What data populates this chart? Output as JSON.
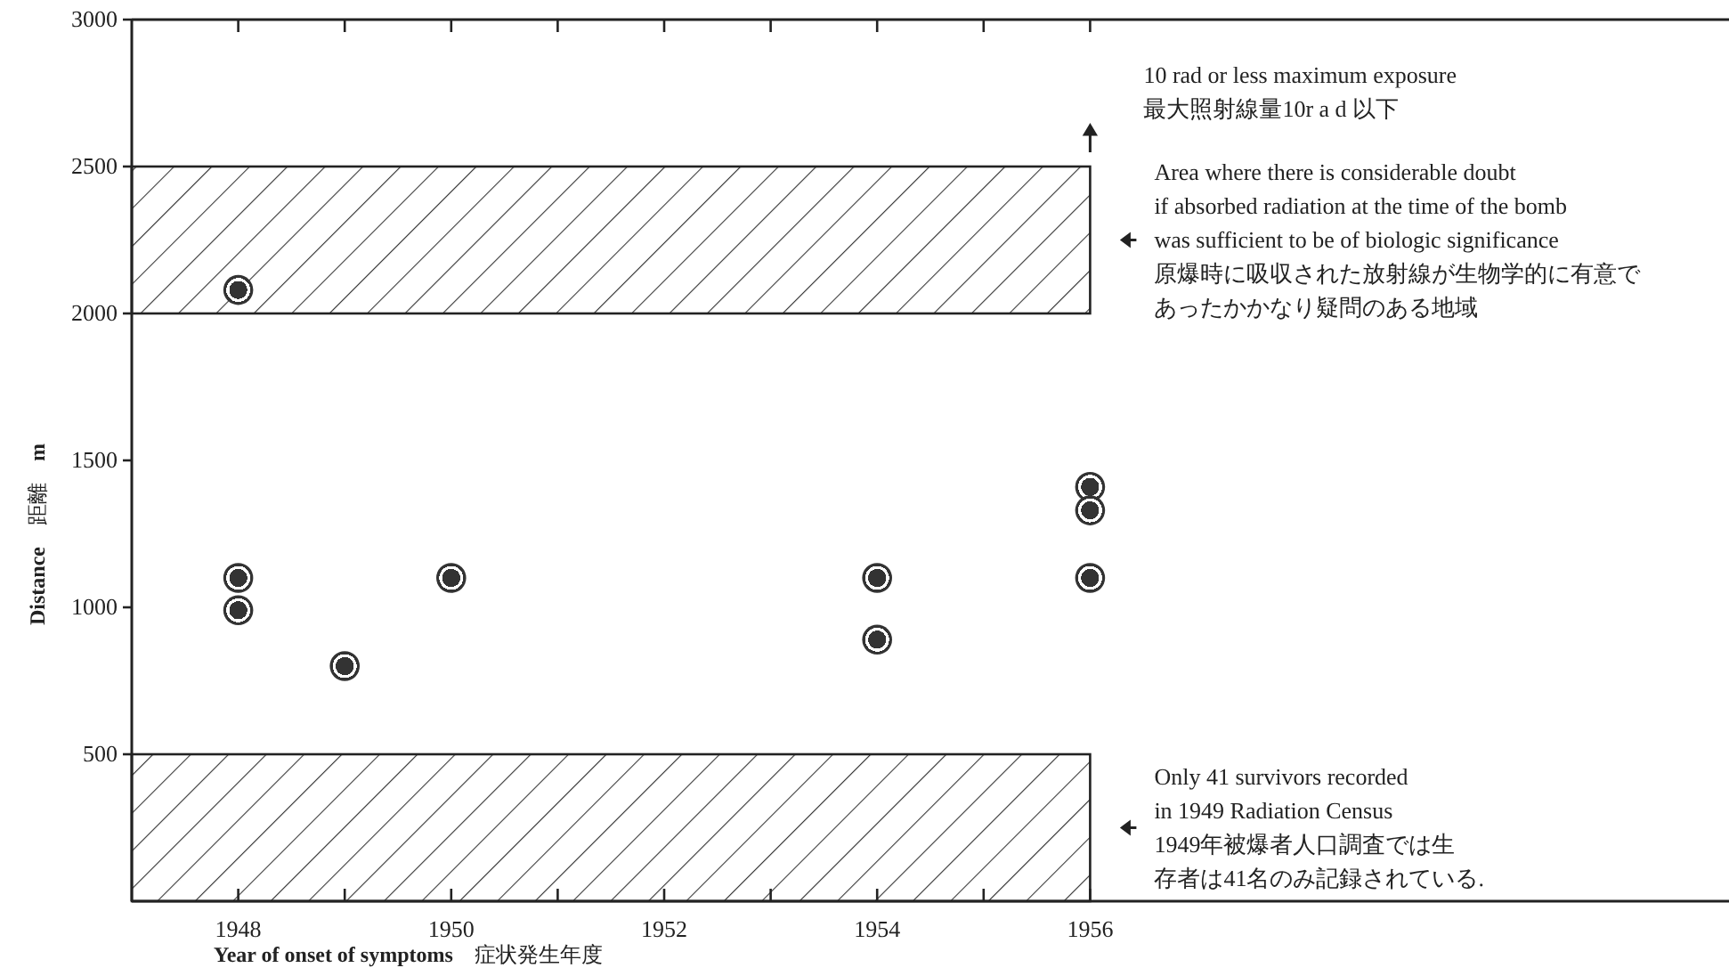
{
  "chart_data": {
    "type": "scatter",
    "xlabel": "**Year of onset of symptoms**　症状発生年度",
    "ylabel": "**Distance**　距離　**m**",
    "x": [
      1948,
      1948,
      1948,
      1949,
      1950,
      1954,
      1954,
      1956,
      1956,
      1956
    ],
    "values": [
      2080,
      1100,
      990,
      800,
      1100,
      1100,
      890,
      1410,
      1330,
      1100
    ],
    "color": "#333333",
    "marker": "circle",
    "xlim": [
      1947,
      1962
    ],
    "ylim": [
      0,
      3000
    ],
    "xticks": [
      1948,
      {
        "value": 1949,
        "label": null
      },
      1950,
      {
        "value": 1951,
        "label": null
      },
      1952,
      {
        "value": 1953,
        "label": null
      },
      1954,
      {
        "value": 1955,
        "label": null
      },
      1956
    ],
    "yticks": [
      500,
      1000,
      1500,
      2000,
      2500,
      3000
    ],
    "bands": [
      {
        "axis": "y",
        "from": 2000,
        "to": 2500,
        "label": "Area  where there is considerable doubt\nif absorbed radiation at the time of the bomb\nwas sufficient to be of biologic significance\n原爆時に吸収された放射線が生物学的に有意であったかかなり疑問のある地域"
      },
      {
        "axis": "y",
        "from": 0,
        "to": 500,
        "label": "Only 41 survivors recorded\nin 1949 Radiation Census\n1949年被爆者人口調査では生存者は41名のみ記録されている."
      }
    ],
    "annotations": [
      "10 rad or less maximum exposure\n最大照射線量10r a d 以下"
    ]
  }
}
